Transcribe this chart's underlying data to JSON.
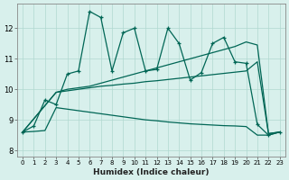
{
  "xlabel": "Humidex (Indice chaleur)",
  "ylabel": "",
  "xlim": [
    -0.5,
    23.5
  ],
  "ylim": [
    7.8,
    12.8
  ],
  "xticks": [
    0,
    1,
    2,
    3,
    4,
    5,
    6,
    7,
    8,
    9,
    10,
    11,
    12,
    13,
    14,
    15,
    16,
    17,
    18,
    19,
    20,
    21,
    22,
    23
  ],
  "yticks": [
    8,
    9,
    10,
    11,
    12
  ],
  "grid_color": "#b0d8d0",
  "bg_color": "#d8f0ec",
  "line_color": "#006655",
  "zigzag": {
    "x": [
      0,
      1,
      2,
      3,
      4,
      5,
      6,
      7,
      8,
      9,
      10,
      11,
      12,
      13,
      14,
      15,
      16,
      17,
      18,
      19,
      20,
      21,
      22,
      23
    ],
    "y": [
      8.6,
      8.8,
      9.65,
      9.5,
      10.5,
      10.6,
      12.55,
      12.35,
      10.6,
      11.85,
      12.0,
      10.6,
      10.65,
      12.0,
      11.5,
      10.3,
      10.55,
      11.5,
      11.7,
      10.9,
      10.85,
      8.85,
      8.5,
      8.6
    ]
  },
  "line_upper": {
    "x": [
      0,
      3,
      4,
      5,
      6,
      7,
      8,
      9,
      10,
      11,
      12,
      13,
      14,
      15,
      16,
      17,
      18,
      19,
      20,
      21,
      22,
      23
    ],
    "y": [
      8.6,
      9.9,
      10.0,
      10.05,
      10.1,
      10.2,
      10.3,
      10.4,
      10.5,
      10.6,
      10.7,
      10.8,
      10.9,
      11.0,
      11.1,
      11.2,
      11.3,
      11.4,
      11.55,
      11.45,
      8.55,
      8.6
    ]
  },
  "line_mid": {
    "x": [
      0,
      3,
      4,
      5,
      6,
      7,
      8,
      9,
      10,
      11,
      12,
      13,
      14,
      15,
      16,
      17,
      18,
      19,
      20,
      21,
      22,
      23
    ],
    "y": [
      8.6,
      9.9,
      9.95,
      10.0,
      10.05,
      10.1,
      10.13,
      10.17,
      10.2,
      10.25,
      10.28,
      10.32,
      10.36,
      10.4,
      10.44,
      10.48,
      10.52,
      10.56,
      10.6,
      10.9,
      8.55,
      8.6
    ]
  },
  "line_lower": {
    "x": [
      0,
      1,
      2,
      3,
      4,
      5,
      6,
      7,
      8,
      9,
      10,
      11,
      12,
      13,
      14,
      15,
      16,
      17,
      18,
      19,
      20,
      21,
      22,
      23
    ],
    "y": [
      8.6,
      8.62,
      8.65,
      9.4,
      9.35,
      9.3,
      9.25,
      9.2,
      9.15,
      9.1,
      9.05,
      9.0,
      8.97,
      8.93,
      8.9,
      8.87,
      8.85,
      8.83,
      8.81,
      8.8,
      8.78,
      8.5,
      8.5,
      8.6
    ]
  }
}
